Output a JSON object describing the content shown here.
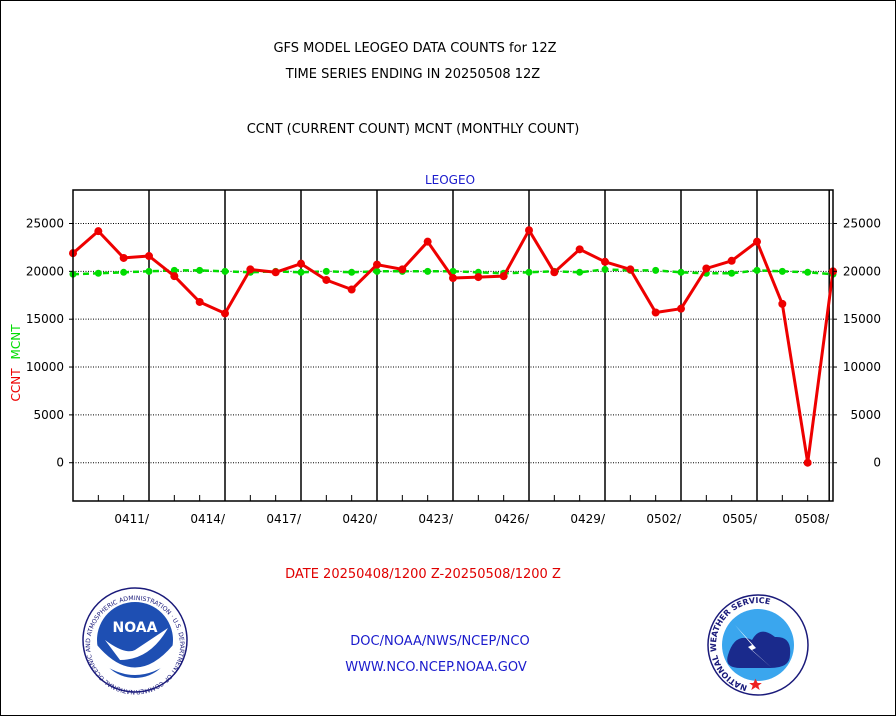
{
  "titles": {
    "line1": "GFS MODEL LEOGEO DATA COUNTS for 12Z",
    "line2": "TIME SERIES ENDING IN 20250508 12Z",
    "line3": "CCNT (CURRENT COUNT) MCNT (MONTHLY COUNT)",
    "panel": "LEOGEO"
  },
  "colors": {
    "ccnt": "#ee0000",
    "mcnt": "#00dd00",
    "accent_blue": "#1a1acc"
  },
  "footer": {
    "date_range": "DATE 20250408/1200 Z-20250508/1200 Z",
    "org_path": "DOC/NOAA/NWS/NCEP/NCO",
    "website": "WWW.NCO.NCEP.NOAA.GOV",
    "noaa_logo_text": "NOAA",
    "noaa_ring_text": "NATIONAL OCEANIC AND ATMOSPHERIC ADMINISTRATION · U.S. DEPARTMENT OF COMMERCE",
    "nws_ring_text": "NATIONAL WEATHER SERVICE"
  },
  "chart_data": {
    "type": "line",
    "ylabel_ccnt": "CCNT",
    "ylabel_mcnt": "MCNT",
    "ylim": [
      -4000,
      28500
    ],
    "yticks": [
      0,
      5000,
      10000,
      15000,
      20000,
      25000
    ],
    "xrange": [
      0,
      30
    ],
    "x_tick_labels": [
      {
        "x": 3,
        "label": "0411/"
      },
      {
        "x": 6,
        "label": "0414/"
      },
      {
        "x": 9,
        "label": "0417/"
      },
      {
        "x": 12,
        "label": "0420/"
      },
      {
        "x": 15,
        "label": "0423/"
      },
      {
        "x": 18,
        "label": "0426/"
      },
      {
        "x": 21,
        "label": "0429/"
      },
      {
        "x": 24,
        "label": "0502/"
      },
      {
        "x": 27,
        "label": "0505/"
      },
      {
        "x": 29.85,
        "label": "0508/"
      }
    ],
    "series": [
      {
        "name": "CCNT",
        "color": "#ee0000",
        "x": [
          0,
          1,
          2,
          3,
          4,
          5,
          6,
          7,
          8,
          9,
          10,
          11,
          12,
          13,
          14,
          15,
          16,
          17,
          18,
          19,
          20,
          21,
          22,
          23,
          24,
          25,
          26,
          27,
          28,
          29,
          30
        ],
        "values": [
          21900,
          24200,
          21400,
          21600,
          19500,
          16800,
          15600,
          20200,
          19900,
          20800,
          19100,
          18100,
          20700,
          20200,
          23100,
          19300,
          19400,
          19500,
          24300,
          19900,
          22300,
          21000,
          20200,
          15700,
          16100,
          20300,
          21100,
          23100,
          16600,
          0,
          20000
        ]
      },
      {
        "name": "MCNT",
        "color": "#00dd00",
        "x": [
          0,
          1,
          2,
          3,
          4,
          5,
          6,
          7,
          8,
          9,
          10,
          11,
          12,
          13,
          14,
          15,
          16,
          17,
          18,
          19,
          20,
          21,
          22,
          23,
          24,
          25,
          26,
          27,
          28,
          29,
          30
        ],
        "values": [
          19700,
          19800,
          19900,
          20000,
          20100,
          20100,
          20000,
          19900,
          20000,
          19900,
          20000,
          19900,
          20000,
          20000,
          20000,
          20000,
          19900,
          19800,
          19900,
          20000,
          19900,
          20200,
          20100,
          20100,
          19900,
          19800,
          19800,
          20100,
          20000,
          19900,
          19700
        ]
      }
    ]
  }
}
